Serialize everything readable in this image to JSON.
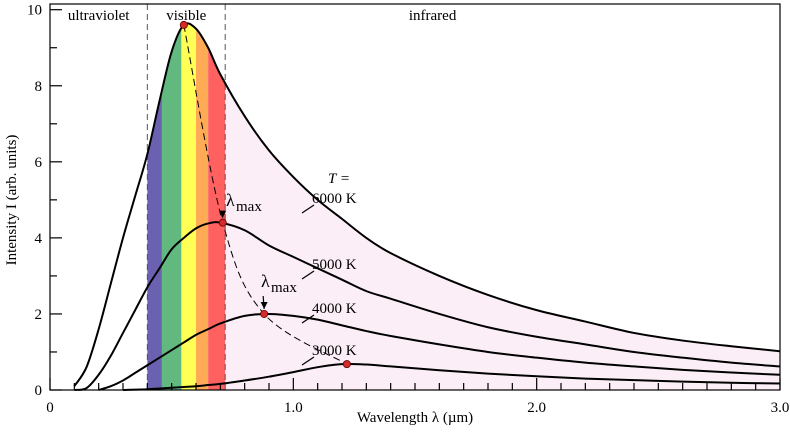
{
  "chart_data": {
    "type": "line",
    "xlabel": "Wavelength  λ  (µm)",
    "ylabel": "Intensity  I  (arb. units)",
    "xlim": [
      0,
      3.0
    ],
    "ylim": [
      0,
      10.15
    ],
    "xticks": [
      0,
      {
        "value": 1,
        "label": "1.0"
      },
      {
        "value": 2,
        "label": "2.0"
      },
      {
        "value": 3,
        "label": "3.0"
      }
    ],
    "xminorticks": [
      0.1,
      0.2,
      0.3,
      0.4,
      0.5,
      0.6,
      0.7,
      0.8,
      0.9,
      1.1,
      1.2,
      1.3,
      1.4,
      1.5,
      1.6,
      1.7,
      1.8,
      1.9,
      2.1,
      2.2,
      2.3,
      2.4,
      2.5,
      2.6,
      2.7,
      2.8,
      2.9
    ],
    "yticks": [
      0,
      2,
      4,
      6,
      8,
      10
    ],
    "yminorticks": [
      1,
      3,
      5,
      7,
      9
    ],
    "x": [
      0.05,
      0.1,
      0.15,
      0.2,
      0.25,
      0.3,
      0.35,
      0.4,
      0.45,
      0.5,
      0.55,
      0.6,
      0.65,
      0.7,
      0.8,
      0.9,
      1.0,
      1.1,
      1.2,
      1.3,
      1.4,
      1.6,
      1.8,
      2.0,
      2.2,
      2.4,
      2.6,
      2.8,
      3.0
    ],
    "series": [
      {
        "name": "6000 K",
        "color": "#000000",
        "values": [
          null,
          0.1,
          0.6,
          1.6,
          2.8,
          4.0,
          5.1,
          6.2,
          7.6,
          8.9,
          9.6,
          9.5,
          9.0,
          8.3,
          7.2,
          6.3,
          5.6,
          5.0,
          4.5,
          4.0,
          3.6,
          3.0,
          2.5,
          2.1,
          1.8,
          1.5,
          1.3,
          1.15,
          1.02
        ]
      },
      {
        "name": "5000 K",
        "color": "#000000",
        "values": [
          null,
          0,
          0.05,
          0.4,
          0.9,
          1.5,
          2.1,
          2.7,
          3.2,
          3.7,
          4.0,
          4.25,
          4.38,
          4.4,
          4.2,
          3.8,
          3.5,
          3.2,
          2.9,
          2.6,
          2.4,
          2.0,
          1.65,
          1.4,
          1.2,
          1.0,
          0.85,
          0.72,
          0.62
        ]
      },
      {
        "name": "4000 K",
        "color": "#000000",
        "values": [
          null,
          null,
          null,
          0,
          0.1,
          0.25,
          0.45,
          0.65,
          0.85,
          1.05,
          1.25,
          1.45,
          1.6,
          1.75,
          1.95,
          2.0,
          1.95,
          1.85,
          1.7,
          1.55,
          1.42,
          1.2,
          1.0,
          0.85,
          0.72,
          0.62,
          0.53,
          0.46,
          0.4
        ]
      },
      {
        "name": "3000 K",
        "color": "#000000",
        "values": [
          null,
          null,
          null,
          null,
          null,
          0,
          0.01,
          0.02,
          0.04,
          0.06,
          0.08,
          0.1,
          0.13,
          0.16,
          0.25,
          0.35,
          0.47,
          0.6,
          0.68,
          0.67,
          0.62,
          0.52,
          0.43,
          0.36,
          0.3,
          0.26,
          0.22,
          0.19,
          0.17
        ]
      }
    ],
    "peaks": {
      "color": "#d42a2a",
      "x": [
        0.55,
        0.71,
        0.88,
        1.22
      ],
      "y": [
        9.6,
        4.4,
        2.0,
        0.68
      ]
    },
    "bands": [
      {
        "color": "#6a62b0",
        "from": 0.4,
        "to": 0.46
      },
      {
        "color": "#62b97f",
        "from": 0.46,
        "to": 0.54
      },
      {
        "color": "#ffff55",
        "from": 0.54,
        "to": 0.6
      },
      {
        "color": "#ffaa55",
        "from": 0.6,
        "to": 0.65
      },
      {
        "color": "#ff6060",
        "from": 0.65,
        "to": 0.72
      }
    ],
    "infrared_fill": "#fbeef6",
    "region_bounds": [
      0.4,
      0.72
    ],
    "regions": [
      "ultraviolet",
      "visible",
      "infrared"
    ],
    "temperature_label": "T =",
    "peak_labels": [
      {
        "symbol": "λ",
        "subscript": "max"
      },
      {
        "symbol": "λ",
        "subscript": "max"
      }
    ]
  }
}
